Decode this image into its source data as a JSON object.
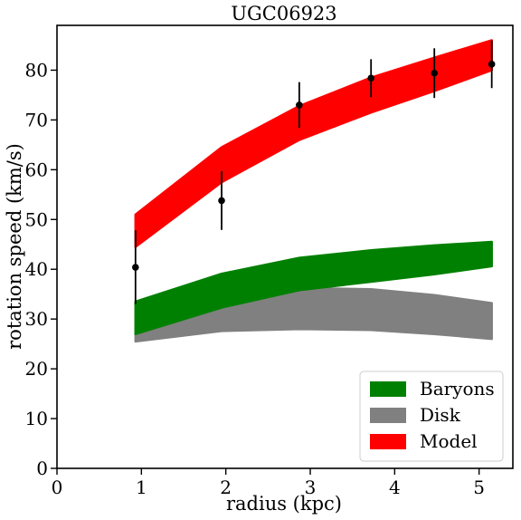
{
  "chart_data": {
    "type": "area",
    "title": "UGC06923",
    "xlabel": "radius (kpc)",
    "ylabel": "rotation speed (km/s)",
    "xlim": [
      0,
      5.4
    ],
    "ylim": [
      0,
      89
    ],
    "xticks": [
      0,
      1,
      2,
      3,
      4,
      5
    ],
    "yticks": [
      0,
      10,
      20,
      30,
      40,
      50,
      60,
      70,
      80
    ],
    "grid": false,
    "legend_position": "bottom-right",
    "bands": [
      {
        "name": "Disk",
        "color": "#808080",
        "x": [
          0.93,
          1.95,
          2.87,
          3.72,
          4.47,
          5.15
        ],
        "lower": [
          25.5,
          27.6,
          28.0,
          27.8,
          27.0,
          26.0
        ],
        "upper": [
          33.0,
          35.3,
          36.2,
          36.0,
          34.8,
          33.2
        ]
      },
      {
        "name": "Baryons",
        "color": "#008000",
        "x": [
          0.93,
          1.95,
          2.87,
          3.72,
          4.47,
          5.15
        ],
        "lower": [
          27.0,
          32.3,
          35.8,
          37.5,
          39.0,
          40.6
        ],
        "upper": [
          33.5,
          39.1,
          42.3,
          43.8,
          44.8,
          45.5
        ]
      },
      {
        "name": "Model",
        "color": "#ff0000",
        "x": [
          0.93,
          1.95,
          2.87,
          3.72,
          4.47,
          5.15
        ],
        "lower": [
          44.5,
          57.5,
          66.0,
          71.5,
          75.8,
          80.0
        ],
        "upper": [
          51.0,
          64.5,
          72.8,
          78.5,
          82.5,
          86.0
        ]
      }
    ],
    "observed": {
      "x": [
        0.93,
        1.95,
        2.87,
        3.72,
        4.47,
        5.15
      ],
      "y": [
        40.4,
        53.8,
        73.0,
        78.4,
        79.4,
        81.2
      ],
      "err": [
        7.4,
        5.9,
        4.6,
        3.8,
        5.0,
        4.8
      ],
      "color": "#000000"
    },
    "legend": [
      "Baryons",
      "Disk",
      "Model"
    ]
  }
}
